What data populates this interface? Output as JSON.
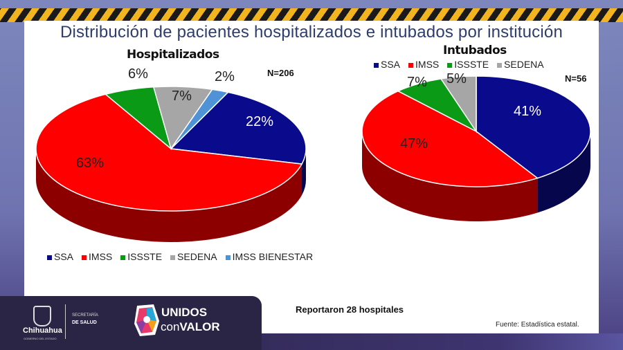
{
  "title": "Distribución de pacientes hospitalizados e intubados por institución",
  "chart_data": [
    {
      "type": "pie",
      "title": "Hospitalizados",
      "annotation": "N=206",
      "categories": [
        "SSA",
        "IMSS",
        "ISSSTE",
        "SEDENA",
        "IMSS BIENESTAR"
      ],
      "values": [
        22,
        63,
        6,
        7,
        2
      ],
      "labels": [
        "22%",
        "63%",
        "6%",
        "7%",
        "2%"
      ],
      "colors": [
        "#0a0a8c",
        "#ff0000",
        "#0b9a16",
        "#a6a6a6",
        "#4f93d6"
      ],
      "legend": "bottom"
    },
    {
      "type": "pie",
      "title": "Intubados",
      "annotation": "N=56",
      "categories": [
        "SSA",
        "IMSS",
        "ISSSTE",
        "SEDENA"
      ],
      "values": [
        41,
        47,
        7,
        5
      ],
      "labels": [
        "41%",
        "47%",
        "7%",
        "5%"
      ],
      "colors": [
        "#0a0a8c",
        "#ff0000",
        "#0b9a16",
        "#a6a6a6"
      ],
      "legend": "top"
    }
  ],
  "note": "Reportaron 28 hospitales",
  "source": "Fuente: Estadística estatal.",
  "footer": {
    "state": "Chihuahua",
    "state_sub": "GOBIERNO DEL ESTADO",
    "secretaria": "SECRETARÍA",
    "salud": "DE SALUD",
    "campaign_1": "UNIDOS",
    "campaign_2a": "con",
    "campaign_2b": "VALOR"
  }
}
